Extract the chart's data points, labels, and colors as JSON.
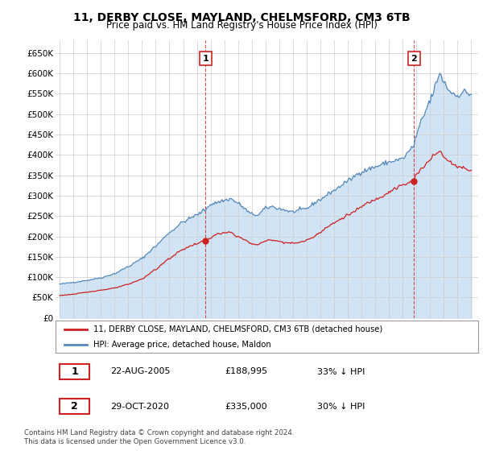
{
  "title": "11, DERBY CLOSE, MAYLAND, CHELMSFORD, CM3 6TB",
  "subtitle": "Price paid vs. HM Land Registry's House Price Index (HPI)",
  "hpi_label": "HPI: Average price, detached house, Maldon",
  "property_label": "11, DERBY CLOSE, MAYLAND, CHELMSFORD, CM3 6TB (detached house)",
  "footer": "Contains HM Land Registry data © Crown copyright and database right 2024.\nThis data is licensed under the Open Government Licence v3.0.",
  "annotation1": {
    "num": "1",
    "date": "22-AUG-2005",
    "price": "£188,995",
    "note": "33% ↓ HPI"
  },
  "annotation2": {
    "num": "2",
    "date": "29-OCT-2020",
    "price": "£335,000",
    "note": "30% ↓ HPI"
  },
  "hpi_color": "#5588bb",
  "hpi_fill": "#d0e4f5",
  "property_color": "#cc2222",
  "marker1_x": 2005.64,
  "marker1_y": 188995,
  "marker2_x": 2020.83,
  "marker2_y": 335000,
  "ylim": [
    0,
    680000
  ],
  "xlim": [
    1994.7,
    2025.5
  ],
  "yticks": [
    0,
    50000,
    100000,
    150000,
    200000,
    250000,
    300000,
    350000,
    400000,
    450000,
    500000,
    550000,
    600000,
    650000
  ],
  "ytick_labels": [
    "£0",
    "£50K",
    "£100K",
    "£150K",
    "£200K",
    "£250K",
    "£300K",
    "£350K",
    "£400K",
    "£450K",
    "£500K",
    "£550K",
    "£600K",
    "£650K"
  ],
  "xticks": [
    1995,
    1996,
    1997,
    1998,
    1999,
    2000,
    2001,
    2002,
    2003,
    2004,
    2005,
    2006,
    2007,
    2008,
    2009,
    2010,
    2011,
    2012,
    2013,
    2014,
    2015,
    2016,
    2017,
    2018,
    2019,
    2020,
    2021,
    2022,
    2023,
    2024,
    2025
  ]
}
